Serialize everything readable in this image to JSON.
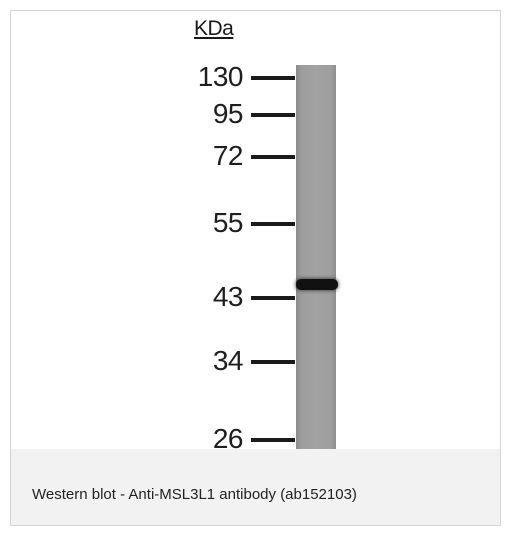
{
  "blot": {
    "unit_label": "KDa",
    "markers": [
      {
        "label": "130",
        "kda": 130
      },
      {
        "label": "95",
        "kda": 95
      },
      {
        "label": "72",
        "kda": 72
      },
      {
        "label": "55",
        "kda": 55
      },
      {
        "label": "43",
        "kda": 43
      },
      {
        "label": "34",
        "kda": 34
      },
      {
        "label": "26",
        "kda": 26
      }
    ],
    "lanes": 1,
    "bands": [
      {
        "lane": 1,
        "kda": 45
      }
    ],
    "colors": {
      "lane": "#a0a0a0",
      "band": "#111111",
      "marker_tick": "#1a1a1a"
    }
  },
  "caption": {
    "text": "Western blot - Anti-MSL3L1 antibody (ab152103)"
  }
}
